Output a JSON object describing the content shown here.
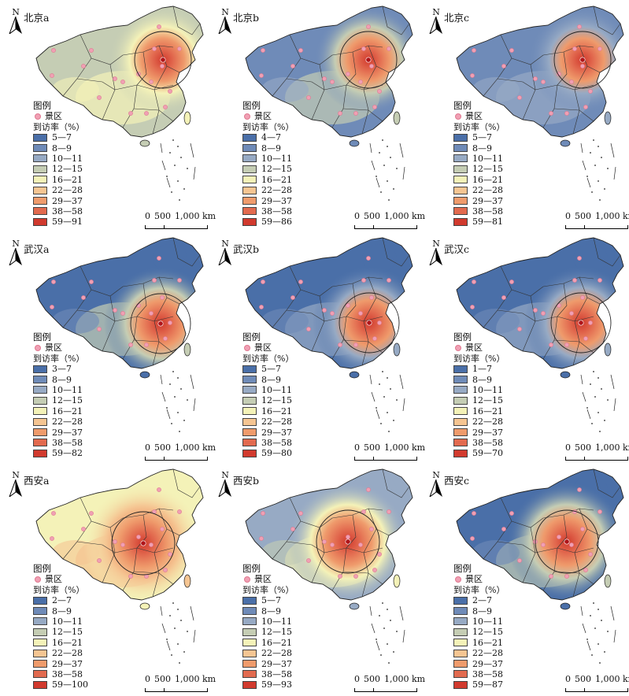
{
  "figure": {
    "north_label": "N",
    "legend_title": "图例",
    "poi_label": "景区",
    "rate_label": "到访率（%）",
    "scale_labels": [
      "0",
      "500",
      "1,000 km"
    ],
    "class_colors": [
      "#4a6fa8",
      "#6f8bb8",
      "#97aac4",
      "#c5cdb4",
      "#f4f2b8",
      "#f5c592",
      "#ef9b6c",
      "#e26a4f",
      "#d13a2e"
    ],
    "poi_color": "#f0a0b4"
  },
  "panels": [
    {
      "id": "beijing-a",
      "title": "北京a",
      "classes": [
        "5—7",
        "8—9",
        "10—11",
        "12—15",
        "16—21",
        "22—28",
        "29—37",
        "38—58",
        "59—91"
      ]
    },
    {
      "id": "beijing-b",
      "title": "北京b",
      "classes": [
        "4—7",
        "8—9",
        "10—11",
        "12—15",
        "16—21",
        "22—28",
        "29—37",
        "38—58",
        "59—86"
      ]
    },
    {
      "id": "beijing-c",
      "title": "北京c",
      "classes": [
        "5—7",
        "8—9",
        "10—11",
        "12—15",
        "16—21",
        "22—28",
        "29—37",
        "38—58",
        "59—81"
      ]
    },
    {
      "id": "wuhan-a",
      "title": "武汉a",
      "classes": [
        "3—7",
        "8—9",
        "10—11",
        "12—15",
        "16—21",
        "22—28",
        "29—37",
        "38—58",
        "59—82"
      ]
    },
    {
      "id": "wuhan-b",
      "title": "武汉b",
      "classes": [
        "5—7",
        "8—9",
        "10—11",
        "12—15",
        "16—21",
        "22—28",
        "29—37",
        "38—58",
        "59—80"
      ]
    },
    {
      "id": "wuhan-c",
      "title": "武汉c",
      "classes": [
        "1—7",
        "8—9",
        "10—11",
        "12—15",
        "16—21",
        "22—28",
        "29—37",
        "38—58",
        "59—70"
      ]
    },
    {
      "id": "xian-a",
      "title": "西安a",
      "classes": [
        "2—7",
        "8—9",
        "10—11",
        "12—15",
        "16—21",
        "22—28",
        "29—37",
        "38—58",
        "59—100"
      ]
    },
    {
      "id": "xian-b",
      "title": "西安b",
      "classes": [
        "5—7",
        "8—9",
        "10—11",
        "12—15",
        "16—21",
        "22—28",
        "29—37",
        "38—58",
        "59—93"
      ]
    },
    {
      "id": "xian-c",
      "title": "西安c",
      "classes": [
        "2—7",
        "8—9",
        "10—11",
        "12—15",
        "16—21",
        "22—28",
        "29—37",
        "38—58",
        "59—87"
      ]
    }
  ]
}
